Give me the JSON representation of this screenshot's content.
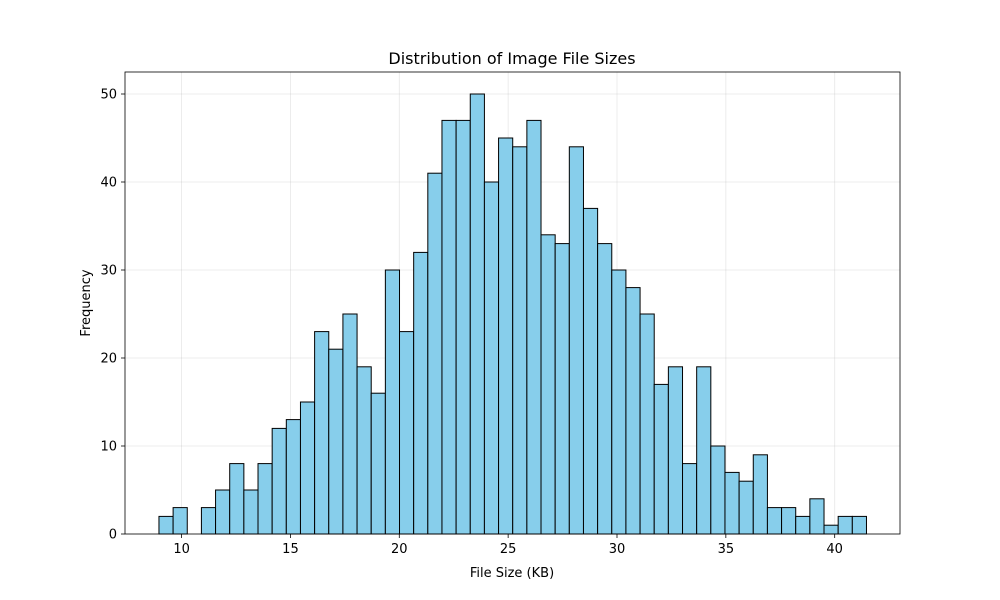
{
  "chart_data": {
    "type": "bar",
    "subtype": "histogram",
    "title": "Distribution of Image File Sizes",
    "xlabel": "File Size (KB)",
    "ylabel": "Frequency",
    "xlim": [
      7.4,
      43.0
    ],
    "ylim": [
      0,
      52.5
    ],
    "xticks": [
      10,
      15,
      20,
      25,
      30,
      35,
      40
    ],
    "yticks": [
      0,
      10,
      20,
      30,
      40,
      50
    ],
    "grid": true,
    "bar_color": "#87ceeb",
    "edge_color": "#000000",
    "bin_start": 8.96,
    "bin_width": 0.65,
    "counts": [
      2,
      3,
      0,
      3,
      5,
      8,
      5,
      8,
      12,
      13,
      15,
      23,
      21,
      25,
      19,
      16,
      30,
      23,
      32,
      41,
      47,
      47,
      50,
      40,
      45,
      44,
      47,
      34,
      33,
      44,
      37,
      33,
      30,
      28,
      25,
      17,
      19,
      8,
      19,
      10,
      7,
      6,
      9,
      3,
      3,
      2,
      4,
      1,
      2,
      2
    ]
  }
}
